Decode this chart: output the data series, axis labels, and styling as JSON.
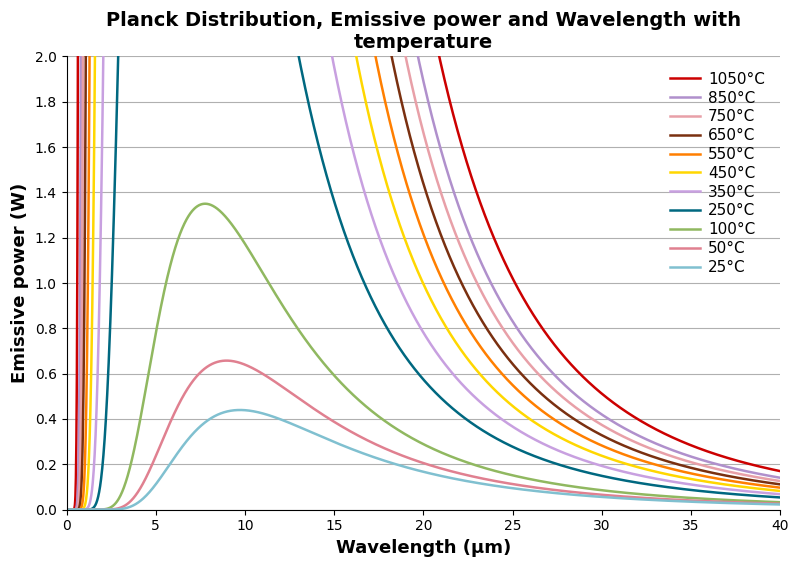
{
  "title": "Planck Distribution, Emissive power and Wavelength with\ntemperature",
  "xlabel": "Wavelength (μm)",
  "ylabel": "Emissive power (W)",
  "xlim": [
    0,
    40
  ],
  "ylim": [
    0,
    2
  ],
  "temperatures_C": [
    1050,
    850,
    750,
    650,
    550,
    450,
    350,
    250,
    100,
    50,
    25
  ],
  "colors": [
    "#cc0000",
    "#b090cc",
    "#e8a0a8",
    "#7a3010",
    "#ff7f00",
    "#ffd700",
    "#c8a0e0",
    "#006880",
    "#90b860",
    "#e08090",
    "#80c0d0"
  ],
  "labels": [
    "1050°C",
    "850°C",
    "750°C",
    "650°C",
    "550°C",
    "450°C",
    "350°C",
    "250°C",
    "100°C",
    "50°C",
    "25°C"
  ],
  "background_color": "#ffffff",
  "grid_color": "#b0b0b0",
  "title_fontsize": 14,
  "label_fontsize": 13,
  "legend_fontsize": 11,
  "wavelength_min": 0.1,
  "wavelength_max": 40.0,
  "n_points": 3000,
  "peak_100C_value": 1.35
}
